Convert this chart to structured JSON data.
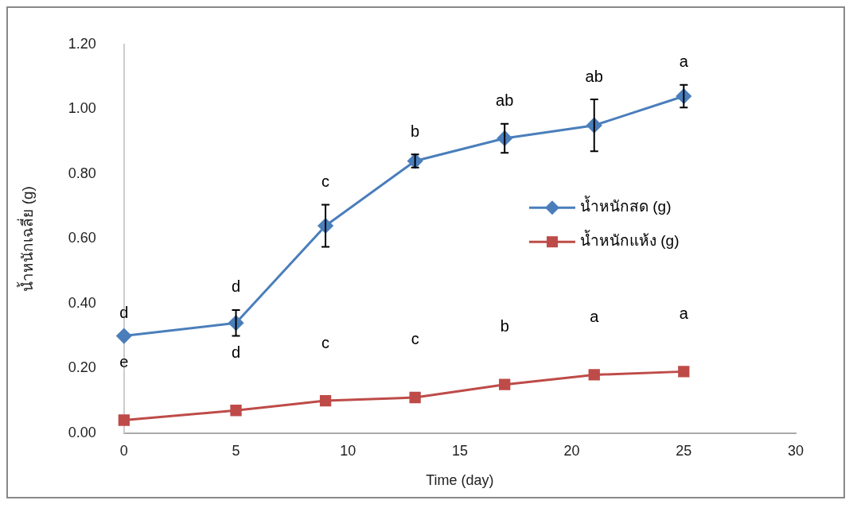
{
  "chart_data": {
    "type": "line",
    "xlabel": "Time (day)",
    "ylabel": "น้ำหนักเฉลี่ย (g)",
    "x": [
      0,
      5,
      9,
      13,
      17,
      21,
      25
    ],
    "series": [
      {
        "name": "น้ำหนักสด (g)",
        "color": "#4a7ebb",
        "marker": "diamond",
        "values": [
          0.3,
          0.34,
          0.64,
          0.84,
          0.91,
          0.95,
          1.04
        ],
        "errors": [
          null,
          0.04,
          0.065,
          0.02,
          0.045,
          0.08,
          0.035
        ]
      },
      {
        "name": "น้ำหนักแห้ง (g)",
        "color": "#be4b48",
        "marker": "square",
        "values": [
          0.04,
          0.07,
          0.1,
          0.11,
          0.15,
          0.18,
          0.19
        ]
      }
    ],
    "xlim": [
      0,
      30
    ],
    "xticks": [
      0,
      5,
      10,
      15,
      20,
      25,
      30
    ],
    "ylim": [
      0,
      1.2
    ],
    "yticks": [
      {
        "value": 0,
        "label": "0.00"
      },
      {
        "value": 0.2,
        "label": "0.20"
      },
      {
        "value": 0.4,
        "label": "0.40"
      },
      {
        "value": 0.6,
        "label": "0.60"
      },
      {
        "value": 0.8,
        "label": "0.80"
      },
      {
        "value": 1.0,
        "label": "1.00"
      },
      {
        "value": 1.2,
        "label": "1.20"
      }
    ],
    "grid": false,
    "legend": "right",
    "line_style": "solid",
    "annotations": [
      {
        "text": "d",
        "x": 0,
        "y": 0.3
      },
      {
        "text": "d",
        "x": 5,
        "y": 0.34
      },
      {
        "text": "c",
        "x": 9,
        "y": 0.64
      },
      {
        "text": "b",
        "x": 13,
        "y": 0.84
      },
      {
        "text": "ab",
        "x": 17,
        "y": 0.91
      },
      {
        "text": "ab",
        "x": 21,
        "y": 0.95
      },
      {
        "text": "a",
        "x": 25,
        "y": 1.04
      },
      "e",
      "d",
      "c",
      "c",
      "b",
      "a",
      "a"
    ]
  }
}
